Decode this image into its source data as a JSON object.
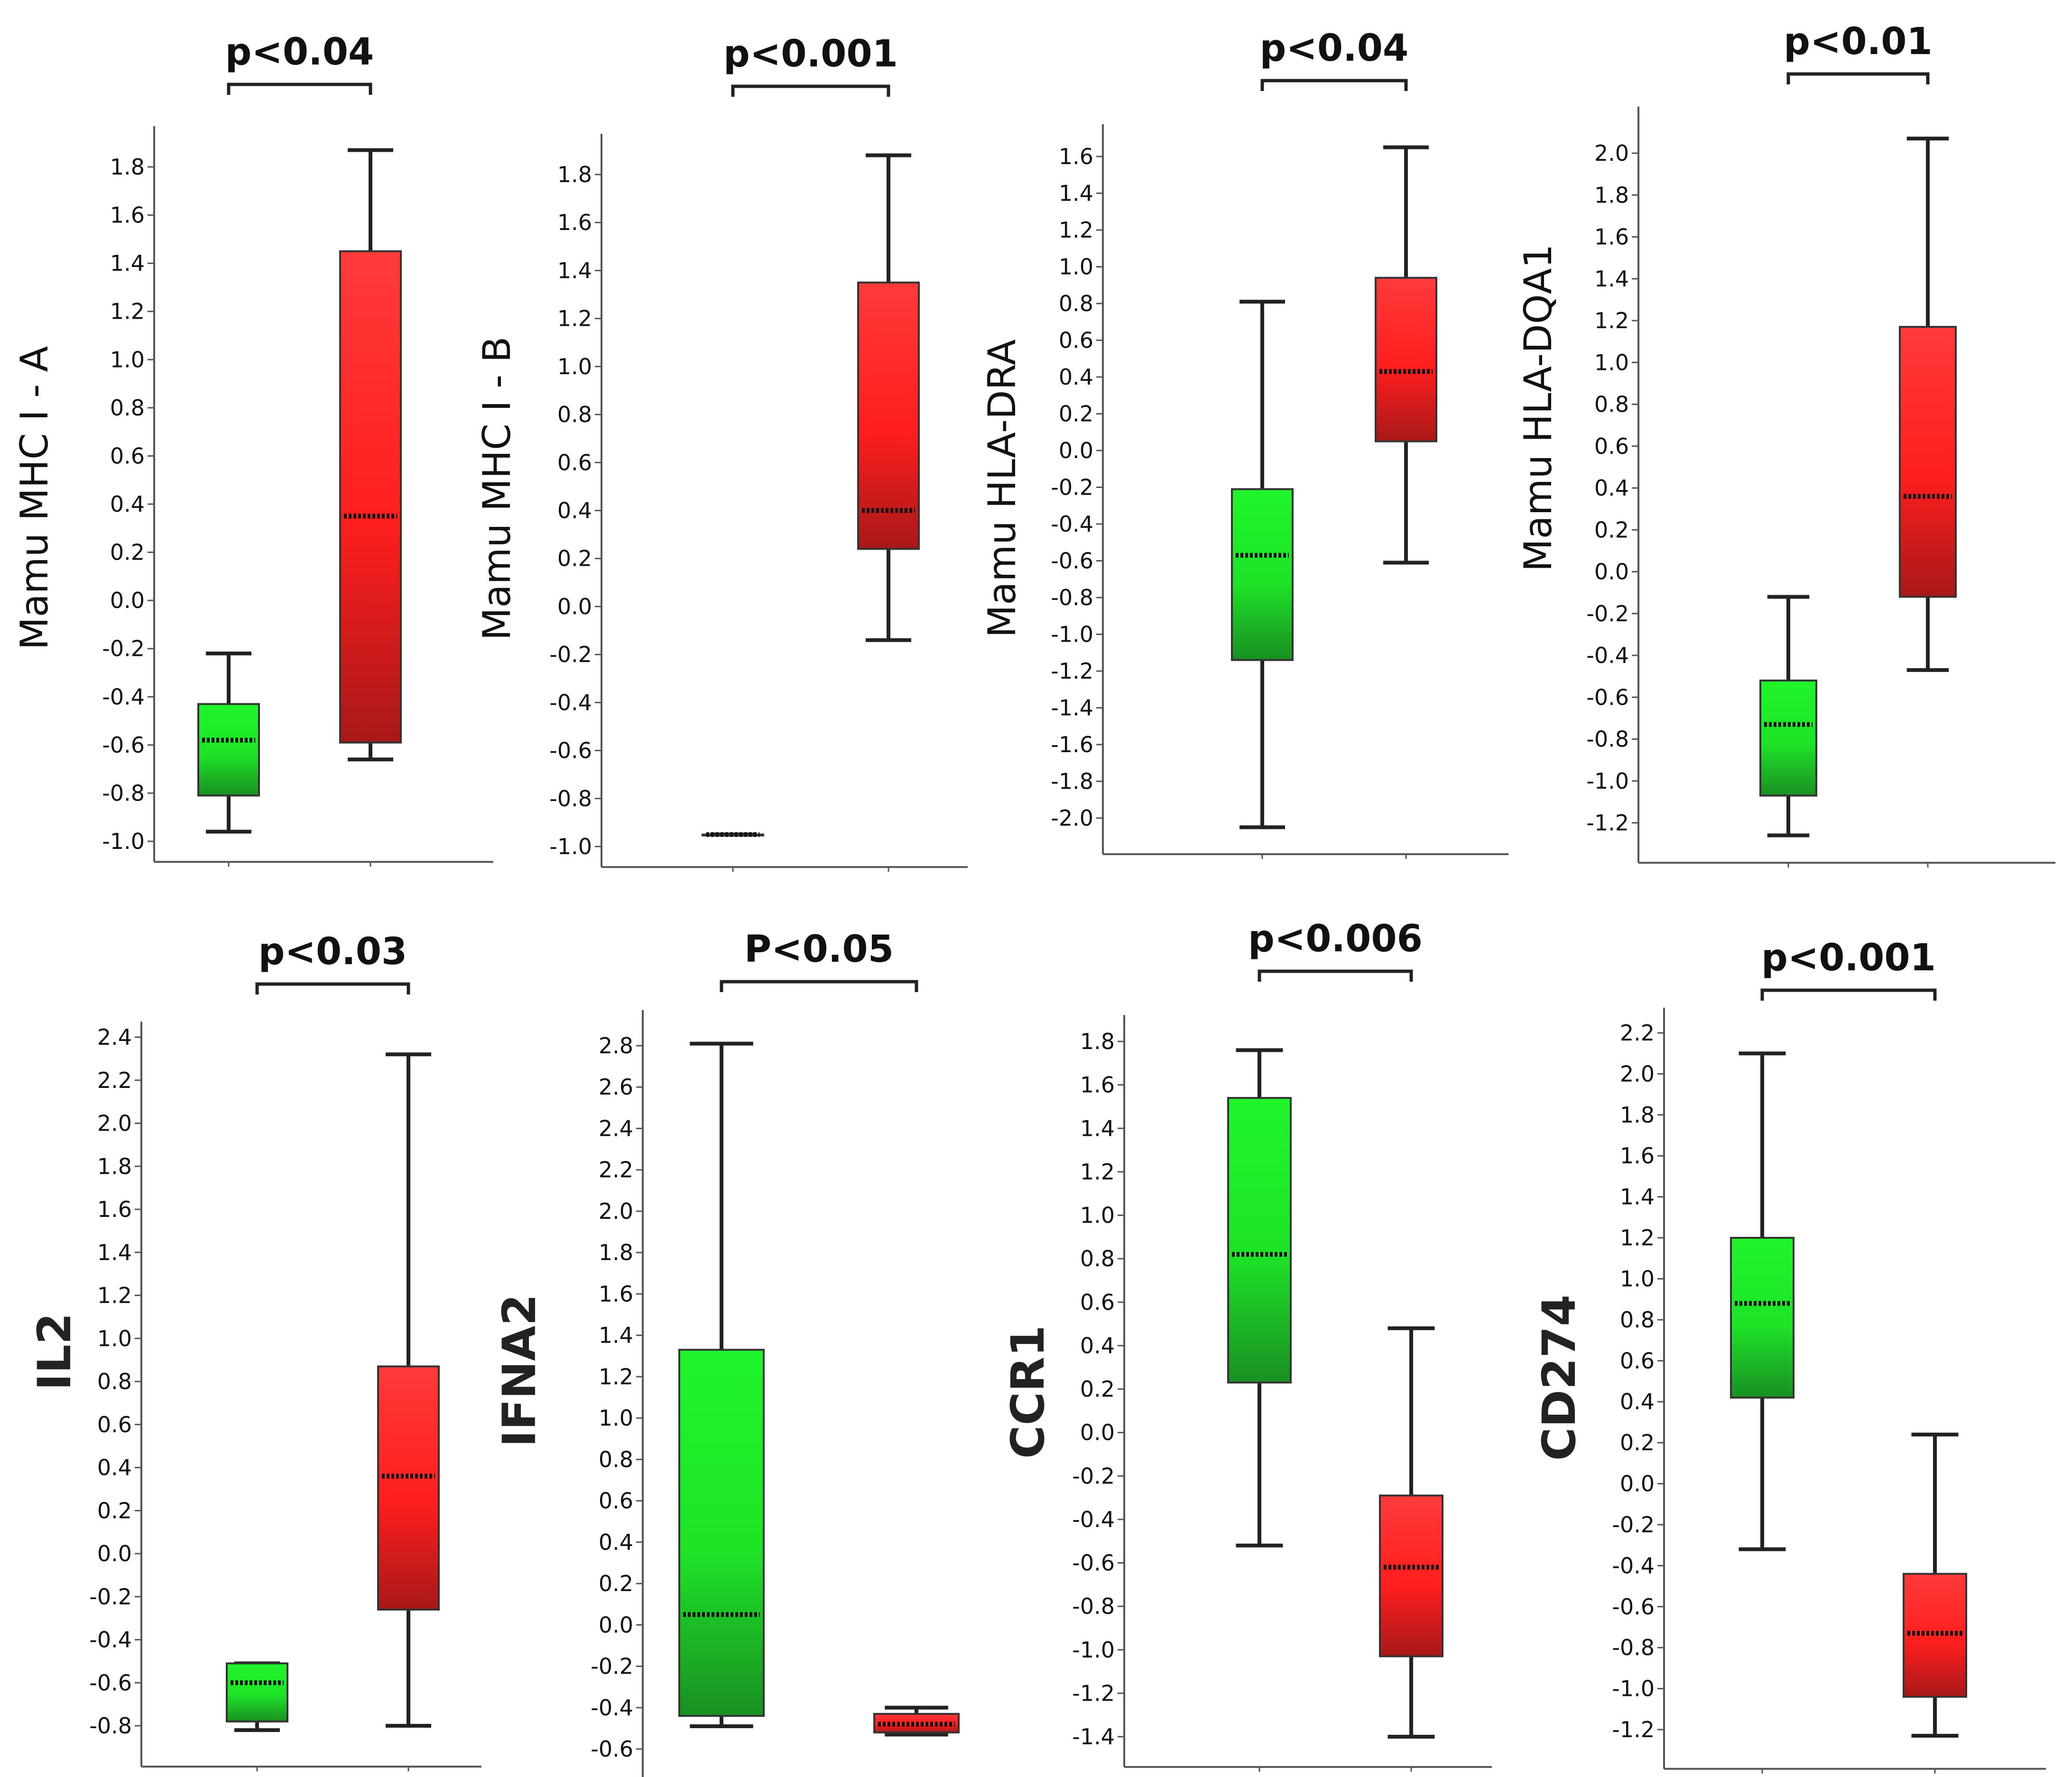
{
  "colors": {
    "group1": "#1ff52a",
    "group1_dark": "#1a8f22",
    "group2": "#ff1e1e",
    "group2_dark": "#a81818",
    "axis": "#555555",
    "whisker": "#222222"
  },
  "chart_data": [
    {
      "type": "box",
      "ylabel": "Mamu MHC I - A",
      "pvalue": "p<0.04",
      "yticks": [
        "-1.0",
        "-0.8",
        "-0.6",
        "-0.4",
        "-0.2",
        "0.0",
        "0.2",
        "0.4",
        "0.6",
        "0.8",
        "1.0",
        "1.2",
        "1.4",
        "1.6",
        "1.8"
      ],
      "ylim": [
        -1.05,
        1.95
      ],
      "boxes": [
        {
          "min": -0.96,
          "q1": -0.81,
          "median": -0.58,
          "q3": -0.43,
          "max": -0.22,
          "color": "green"
        },
        {
          "min": -0.66,
          "q1": -0.59,
          "median": 0.35,
          "q3": 1.45,
          "max": 1.87,
          "color": "red"
        }
      ]
    },
    {
      "type": "box",
      "ylabel": "Mamu MHC I - B",
      "pvalue": "p<0.001",
      "yticks": [
        "-1.0",
        "-0.8",
        "-0.6",
        "-0.4",
        "-0.2",
        "0.0",
        "0.2",
        "0.4",
        "0.6",
        "0.8",
        "1.0",
        "1.2",
        "1.4",
        "1.6",
        "1.8"
      ],
      "ylim": [
        -1.05,
        1.95
      ],
      "boxes": [
        {
          "min": -0.95,
          "q1": -0.95,
          "median": -0.95,
          "q3": -0.95,
          "max": -0.95,
          "color": "green"
        },
        {
          "min": -0.14,
          "q1": 0.24,
          "median": 0.4,
          "q3": 1.35,
          "max": 1.88,
          "color": "red"
        }
      ]
    },
    {
      "type": "box",
      "ylabel": "Mamu HLA-DRA",
      "pvalue": "p<0.04",
      "yticks": [
        "-2.0",
        "-1.8",
        "-1.6",
        "-1.4",
        "-1.2",
        "-1.0",
        "-0.8",
        "-0.6",
        "-0.4",
        "-0.2",
        "0.0",
        "0.2",
        "0.4",
        "0.6",
        "0.8",
        "1.0",
        "1.2",
        "1.4",
        "1.6"
      ],
      "ylim": [
        -2.15,
        1.75
      ],
      "boxes": [
        {
          "min": -2.05,
          "q1": -1.14,
          "median": -0.57,
          "q3": -0.21,
          "max": 0.81,
          "color": "green"
        },
        {
          "min": -0.61,
          "q1": 0.05,
          "median": 0.43,
          "q3": 0.94,
          "max": 1.65,
          "color": "red"
        }
      ]
    },
    {
      "type": "box",
      "ylabel": "Mamu HLA-DQA1",
      "pvalue": "p<0.01",
      "yticks": [
        "-1.2",
        "-1.0",
        "-0.8",
        "-0.6",
        "-0.4",
        "-0.2",
        "0.0",
        "0.2",
        "0.4",
        "0.6",
        "0.8",
        "1.0",
        "1.2",
        "1.4",
        "1.6",
        "1.8",
        "2.0"
      ],
      "ylim": [
        -1.35,
        2.2
      ],
      "boxes": [
        {
          "min": -1.26,
          "q1": -1.07,
          "median": -0.73,
          "q3": -0.52,
          "max": -0.12,
          "color": "green"
        },
        {
          "min": -0.47,
          "q1": -0.12,
          "median": 0.36,
          "q3": 1.17,
          "max": 2.07,
          "color": "red"
        }
      ]
    },
    {
      "type": "box",
      "ylabel": "IL2",
      "pvalue": "p<0.03",
      "yticks": [
        "-0.8",
        "-0.6",
        "-0.4",
        "-0.2",
        "0.0",
        "0.2",
        "0.4",
        "0.6",
        "0.8",
        "1.0",
        "1.2",
        "1.4",
        "1.6",
        "1.8",
        "2.0",
        "2.2",
        "2.4"
      ],
      "ylim": [
        -0.95,
        2.45
      ],
      "boxes": [
        {
          "min": -0.82,
          "q1": -0.78,
          "median": -0.6,
          "q3": -0.51,
          "max": -0.51,
          "color": "green"
        },
        {
          "min": -0.8,
          "q1": -0.26,
          "median": 0.36,
          "q3": 0.87,
          "max": 2.32,
          "color": "red"
        }
      ]
    },
    {
      "type": "box",
      "ylabel": "IFNA2",
      "pvalue": "P<0.05",
      "yticks": [
        "-0.6",
        "-0.4",
        "-0.2",
        "0.0",
        "0.2",
        "0.4",
        "0.6",
        "0.8",
        "1.0",
        "1.2",
        "1.4",
        "1.6",
        "1.8",
        "2.0",
        "2.2",
        "2.4",
        "2.6",
        "2.8"
      ],
      "ylim": [
        -0.72,
        2.95
      ],
      "boxes": [
        {
          "min": -0.49,
          "q1": -0.44,
          "median": 0.05,
          "q3": 1.33,
          "max": 2.81,
          "color": "green"
        },
        {
          "min": -0.53,
          "q1": -0.52,
          "median": -0.48,
          "q3": -0.43,
          "max": -0.4,
          "color": "red"
        }
      ]
    },
    {
      "type": "box",
      "ylabel": "CCR1",
      "pvalue": "p<0.006",
      "yticks": [
        "-1.4",
        "-1.2",
        "-1.0",
        "-0.8",
        "-0.6",
        "-0.4",
        "-0.2",
        "0.0",
        "0.2",
        "0.4",
        "0.6",
        "0.8",
        "1.0",
        "1.2",
        "1.4",
        "1.6",
        "1.8"
      ],
      "ylim": [
        -1.5,
        1.9
      ],
      "boxes": [
        {
          "min": -0.52,
          "q1": 0.23,
          "median": 0.82,
          "q3": 1.54,
          "max": 1.76,
          "color": "green"
        },
        {
          "min": -1.4,
          "q1": -1.03,
          "median": -0.62,
          "q3": -0.29,
          "max": 0.48,
          "color": "red"
        }
      ]
    },
    {
      "type": "box",
      "ylabel": "CD274",
      "pvalue": "p<0.001",
      "yticks": [
        "-1.2",
        "-1.0",
        "-0.8",
        "-0.6",
        "-0.4",
        "-0.2",
        "0.0",
        "0.2",
        "0.4",
        "0.6",
        "0.8",
        "1.0",
        "1.2",
        "1.4",
        "1.6",
        "1.8",
        "2.0",
        "2.2"
      ],
      "ylim": [
        -1.35,
        2.3
      ],
      "boxes": [
        {
          "min": -0.32,
          "q1": 0.42,
          "median": 0.88,
          "q3": 1.2,
          "max": 2.1,
          "color": "green"
        },
        {
          "min": -1.23,
          "q1": -1.04,
          "median": -0.73,
          "q3": -0.44,
          "max": 0.24,
          "color": "red"
        }
      ]
    }
  ]
}
